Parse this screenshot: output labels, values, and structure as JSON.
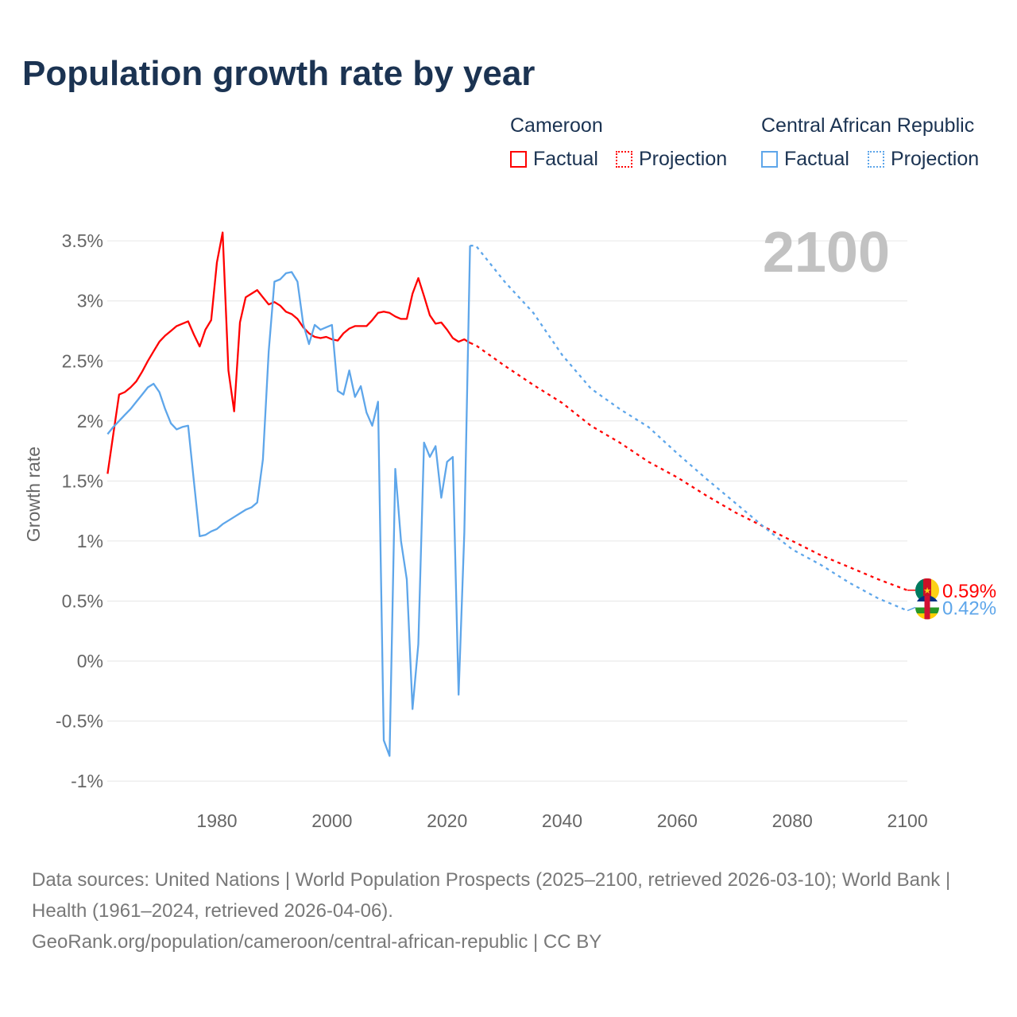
{
  "title": "Population growth rate by year",
  "legend": {
    "groups": [
      {
        "country": "Cameroon",
        "factual": "Factual",
        "projection": "Projection",
        "color": "#ff0000"
      },
      {
        "country": "Central African Republic",
        "factual": "Factual",
        "projection": "Projection",
        "color": "#5ea6ea"
      }
    ]
  },
  "footer": {
    "sources": "Data sources: United Nations | World Population Prospects (2025–2100, retrieved 2026-03-10); World Bank | Health (1961–2024, retrieved 2026-04-06).",
    "credit": "GeoRank.org/population/cameroon/central-african-republic | CC BY"
  },
  "chart_data": {
    "type": "line",
    "title": "Population growth rate by year",
    "ylabel": "Growth rate",
    "xlabel": "",
    "year_label": "2100",
    "xlim": [
      1961,
      2100
    ],
    "ylim": [
      -1.1,
      3.6
    ],
    "xticks": [
      1980,
      2000,
      2020,
      2040,
      2060,
      2080,
      2100
    ],
    "yticks": [
      -1,
      -0.5,
      0,
      0.5,
      1,
      1.5,
      2,
      2.5,
      3,
      3.5
    ],
    "ytick_labels": [
      "-1%",
      "-0.5%",
      "0%",
      "0.5%",
      "1%",
      "1.5%",
      "2%",
      "2.5%",
      "3%",
      "3.5%"
    ],
    "grid": true,
    "legend_position": "top-right",
    "series": [
      {
        "name": "Cameroon",
        "kind": "factual",
        "color": "#ff0000",
        "start_year": 1961,
        "values": [
          1.56,
          1.89,
          2.22,
          2.24,
          2.28,
          2.33,
          2.41,
          2.5,
          2.58,
          2.66,
          2.71,
          2.75,
          2.79,
          2.81,
          2.83,
          2.72,
          2.62,
          2.76,
          2.84,
          3.32,
          3.57,
          2.42,
          2.08,
          2.82,
          3.03,
          3.06,
          3.09,
          3.03,
          2.97,
          2.99,
          2.96,
          2.91,
          2.89,
          2.85,
          2.78,
          2.73,
          2.7,
          2.69,
          2.7,
          2.68,
          2.67,
          2.73,
          2.77,
          2.79,
          2.79,
          2.79,
          2.84,
          2.9,
          2.91,
          2.9,
          2.87,
          2.85,
          2.85,
          3.06,
          3.19,
          3.04,
          2.88,
          2.81,
          2.82,
          2.76,
          2.69,
          2.66,
          2.68,
          2.65
        ]
      },
      {
        "name": "Cameroon",
        "kind": "projection",
        "color": "#ff0000",
        "x": [
          2024,
          2025,
          2030,
          2035,
          2040,
          2045,
          2050,
          2055,
          2060,
          2065,
          2070,
          2075,
          2080,
          2085,
          2090,
          2095,
          2100
        ],
        "values": [
          2.65,
          2.63,
          2.46,
          2.3,
          2.15,
          1.96,
          1.82,
          1.66,
          1.53,
          1.38,
          1.24,
          1.12,
          1.0,
          0.88,
          0.78,
          0.68,
          0.59
        ],
        "end_label": "0.59%"
      },
      {
        "name": "Central African Republic",
        "kind": "factual",
        "color": "#5ea6ea",
        "start_year": 1961,
        "values": [
          1.89,
          1.95,
          2.0,
          2.05,
          2.1,
          2.16,
          2.22,
          2.28,
          2.31,
          2.24,
          2.1,
          1.98,
          1.93,
          1.95,
          1.96,
          1.5,
          1.04,
          1.05,
          1.08,
          1.1,
          1.14,
          1.17,
          1.2,
          1.23,
          1.26,
          1.28,
          1.32,
          1.68,
          2.58,
          3.16,
          3.18,
          3.23,
          3.24,
          3.16,
          2.81,
          2.64,
          2.8,
          2.76,
          2.78,
          2.8,
          2.25,
          2.22,
          2.42,
          2.2,
          2.29,
          2.07,
          1.96,
          2.16,
          -0.66,
          -0.79,
          1.6,
          1.0,
          0.68,
          -0.4,
          0.14,
          1.82,
          1.7,
          1.79,
          1.36,
          1.66,
          1.7,
          -0.28,
          1.07,
          3.46
        ]
      },
      {
        "name": "Central African Republic",
        "kind": "projection",
        "color": "#5ea6ea",
        "x": [
          2024,
          2025,
          2030,
          2035,
          2040,
          2045,
          2050,
          2055,
          2060,
          2065,
          2070,
          2075,
          2080,
          2085,
          2090,
          2095,
          2100
        ],
        "values": [
          3.46,
          3.46,
          3.16,
          2.9,
          2.55,
          2.27,
          2.1,
          1.95,
          1.73,
          1.52,
          1.32,
          1.12,
          0.93,
          0.8,
          0.65,
          0.52,
          0.42
        ],
        "end_label": "0.42%"
      }
    ]
  }
}
